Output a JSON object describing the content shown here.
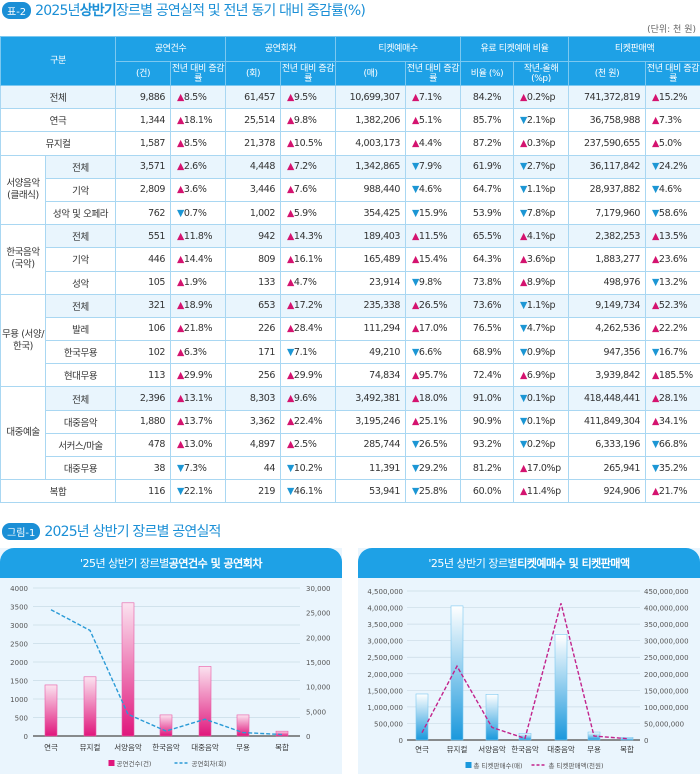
{
  "title": {
    "tag": "표-2",
    "pre": "2025년 ",
    "bold": "상반기",
    "post": " 장르별 공연실적 및 전년 동기 대비 증감률(%)"
  },
  "unit": "(단위: 천 원)",
  "header": {
    "category": "구분",
    "groups": [
      "공연건수",
      "공연회차",
      "티켓예매수",
      "유료 티켓예매 비율",
      "티켓판매액"
    ],
    "subs": [
      "(건)",
      "전년 대비 증감률",
      "(회)",
      "전년 대비 증감률",
      "(매)",
      "전년 대비 증감률",
      "비율 (%)",
      "작년-올해 (%p)",
      "(천 원)",
      "전년 대비 증감률"
    ]
  },
  "rows": [
    {
      "group": "전체",
      "sub": "",
      "hl": true,
      "v": [
        "9,886",
        "▲8.5%",
        "61,457",
        "▲9.5%",
        "10,699,307",
        "▲7.1%",
        "84.2%",
        "▲0.2%p",
        "741,372,819",
        "▲15.2%"
      ]
    },
    {
      "group": "연극",
      "sub": "",
      "v": [
        "1,344",
        "▲18.1%",
        "25,514",
        "▲9.8%",
        "1,382,206",
        "▲5.1%",
        "85.7%",
        "▼2.1%p",
        "36,758,988",
        "▲7.3%"
      ]
    },
    {
      "group": "뮤지컬",
      "sub": "",
      "v": [
        "1,587",
        "▲8.5%",
        "21,378",
        "▲10.5%",
        "4,003,173",
        "▲4.4%",
        "87.2%",
        "▲0.3%p",
        "237,590,655",
        "▲5.0%"
      ]
    },
    {
      "group": "서양음악 (클래식)",
      "span": 3,
      "sub": "전체",
      "hl": true,
      "v": [
        "3,571",
        "▲2.6%",
        "4,448",
        "▲7.2%",
        "1,342,865",
        "▼7.9%",
        "61.9%",
        "▼2.7%p",
        "36,117,842",
        "▼24.2%"
      ]
    },
    {
      "sub": "기악",
      "v": [
        "2,809",
        "▲3.6%",
        "3,446",
        "▲7.6%",
        "988,440",
        "▼4.6%",
        "64.7%",
        "▼1.1%p",
        "28,937,882",
        "▼4.6%"
      ]
    },
    {
      "sub": "성악 및 오페라",
      "v": [
        "762",
        "▼0.7%",
        "1,002",
        "▲5.9%",
        "354,425",
        "▼15.9%",
        "53.9%",
        "▼7.8%p",
        "7,179,960",
        "▼58.6%"
      ]
    },
    {
      "group": "한국음악 (국악)",
      "span": 3,
      "sub": "전체",
      "hl": true,
      "v": [
        "551",
        "▲11.8%",
        "942",
        "▲14.3%",
        "189,403",
        "▲11.5%",
        "65.5%",
        "▲4.1%p",
        "2,382,253",
        "▲13.5%"
      ]
    },
    {
      "sub": "기악",
      "v": [
        "446",
        "▲14.4%",
        "809",
        "▲16.1%",
        "165,489",
        "▲15.4%",
        "64.3%",
        "▲3.6%p",
        "1,883,277",
        "▲23.6%"
      ]
    },
    {
      "sub": "성악",
      "v": [
        "105",
        "▲1.9%",
        "133",
        "▲4.7%",
        "23,914",
        "▼9.8%",
        "73.8%",
        "▲8.9%p",
        "498,976",
        "▼13.2%"
      ]
    },
    {
      "group": "무용 (서양/한국)",
      "span": 4,
      "sub": "전체",
      "hl": true,
      "v": [
        "321",
        "▲18.9%",
        "653",
        "▲17.2%",
        "235,338",
        "▲26.5%",
        "73.6%",
        "▼1.1%p",
        "9,149,734",
        "▲52.3%"
      ]
    },
    {
      "sub": "발레",
      "v": [
        "106",
        "▲21.8%",
        "226",
        "▲28.4%",
        "111,294",
        "▲17.0%",
        "76.5%",
        "▼4.7%p",
        "4,262,536",
        "▲22.2%"
      ]
    },
    {
      "sub": "한국무용",
      "v": [
        "102",
        "▲6.3%",
        "171",
        "▼7.1%",
        "49,210",
        "▼6.6%",
        "68.9%",
        "▼0.9%p",
        "947,356",
        "▼16.7%"
      ]
    },
    {
      "sub": "현대무용",
      "v": [
        "113",
        "▲29.9%",
        "256",
        "▲29.9%",
        "74,834",
        "▲95.7%",
        "72.4%",
        "▲6.9%p",
        "3,939,842",
        "▲185.5%"
      ]
    },
    {
      "group": "대중예술",
      "span": 4,
      "sub": "전체",
      "hl": true,
      "v": [
        "2,396",
        "▲13.1%",
        "8,303",
        "▲9.6%",
        "3,492,381",
        "▲18.0%",
        "91.0%",
        "▼0.1%p",
        "418,448,441",
        "▲28.1%"
      ]
    },
    {
      "sub": "대중음악",
      "v": [
        "1,880",
        "▲13.7%",
        "3,362",
        "▲22.4%",
        "3,195,246",
        "▲25.1%",
        "90.9%",
        "▼0.1%p",
        "411,849,304",
        "▲34.1%"
      ]
    },
    {
      "sub": "서커스/마술",
      "v": [
        "478",
        "▲13.0%",
        "4,897",
        "▲2.5%",
        "285,744",
        "▼26.5%",
        "93.2%",
        "▼0.2%p",
        "6,333,196",
        "▼66.8%"
      ]
    },
    {
      "sub": "대중무용",
      "v": [
        "38",
        "▼7.3%",
        "44",
        "▼10.2%",
        "11,391",
        "▼29.2%",
        "81.2%",
        "▲17.0%p",
        "265,941",
        "▼35.2%"
      ]
    },
    {
      "group": "복합",
      "sub": "",
      "v": [
        "116",
        "▼22.1%",
        "219",
        "▼46.1%",
        "53,941",
        "▼25.8%",
        "60.0%",
        "▲11.4%p",
        "924,906",
        "▲21.7%"
      ]
    }
  ],
  "figure": {
    "tag": "그림-1",
    "title": "2025년 상반기 장르별 공연실적"
  },
  "colors": {
    "up": "#d4136f",
    "down": "#1c96d4",
    "header": "#1ea1e6"
  },
  "chart_data": [
    {
      "type": "bar",
      "title_pre": "'25년 상반기 장르별 ",
      "title_bold": "공연건수 및 공연회차",
      "categories": [
        "연극",
        "뮤지컬",
        "서양음악",
        "한국음악",
        "대중음악",
        "무용",
        "복합"
      ],
      "series": [
        {
          "name": "공연건수(건)",
          "kind": "bar",
          "axis": "left",
          "values": [
            1380,
            1600,
            3600,
            570,
            1880,
            570,
            130
          ]
        },
        {
          "name": "공연회차(회)",
          "kind": "line",
          "axis": "right",
          "values": [
            25600,
            21400,
            4400,
            1000,
            3400,
            700,
            300
          ]
        }
      ],
      "yleft": {
        "min": 0,
        "max": 4000,
        "ticks": [
          "0",
          "500",
          "1000",
          "1500",
          "2000",
          "2500",
          "3000",
          "3500",
          "4000"
        ]
      },
      "yright": {
        "min": 0,
        "max": 30000,
        "ticks": [
          "0",
          "5,000",
          "10,000",
          "15,000",
          "20,000",
          "25,000",
          "30,000"
        ]
      }
    },
    {
      "type": "bar",
      "title_pre": "'25년 상반기 장르별 ",
      "title_bold": "티켓예매수 및 티켓판매액",
      "categories": [
        "연극",
        "뮤지컬",
        "서양음악",
        "한국음악",
        "대중음악",
        "무용",
        "복합"
      ],
      "series": [
        {
          "name": "총 티켓판매수(매)",
          "kind": "bar",
          "axis": "left",
          "values": [
            1390000,
            4050000,
            1380000,
            200000,
            3190000,
            240000,
            80000
          ]
        },
        {
          "name": "총 티켓판매액(천원)",
          "kind": "line",
          "axis": "right",
          "values": [
            22000000,
            223000000,
            38000000,
            5000000,
            413000000,
            12000000,
            4000000
          ]
        }
      ],
      "yleft": {
        "min": 0,
        "max": 4500000,
        "ticks": [
          "0",
          "500,000",
          "1,000,000",
          "1,500,000",
          "2,000,000",
          "2,500,000",
          "3,000,000",
          "3,500,000",
          "4,000,000",
          "4,500,000"
        ]
      },
      "yright": {
        "min": 0,
        "max": 450000000,
        "ticks": [
          "0",
          "50,000,000",
          "100,000,000",
          "150,000,000",
          "200,000,000",
          "250,000,000",
          "300,000,000",
          "350,000,000",
          "400,000,000",
          "450,000,000"
        ]
      }
    }
  ]
}
